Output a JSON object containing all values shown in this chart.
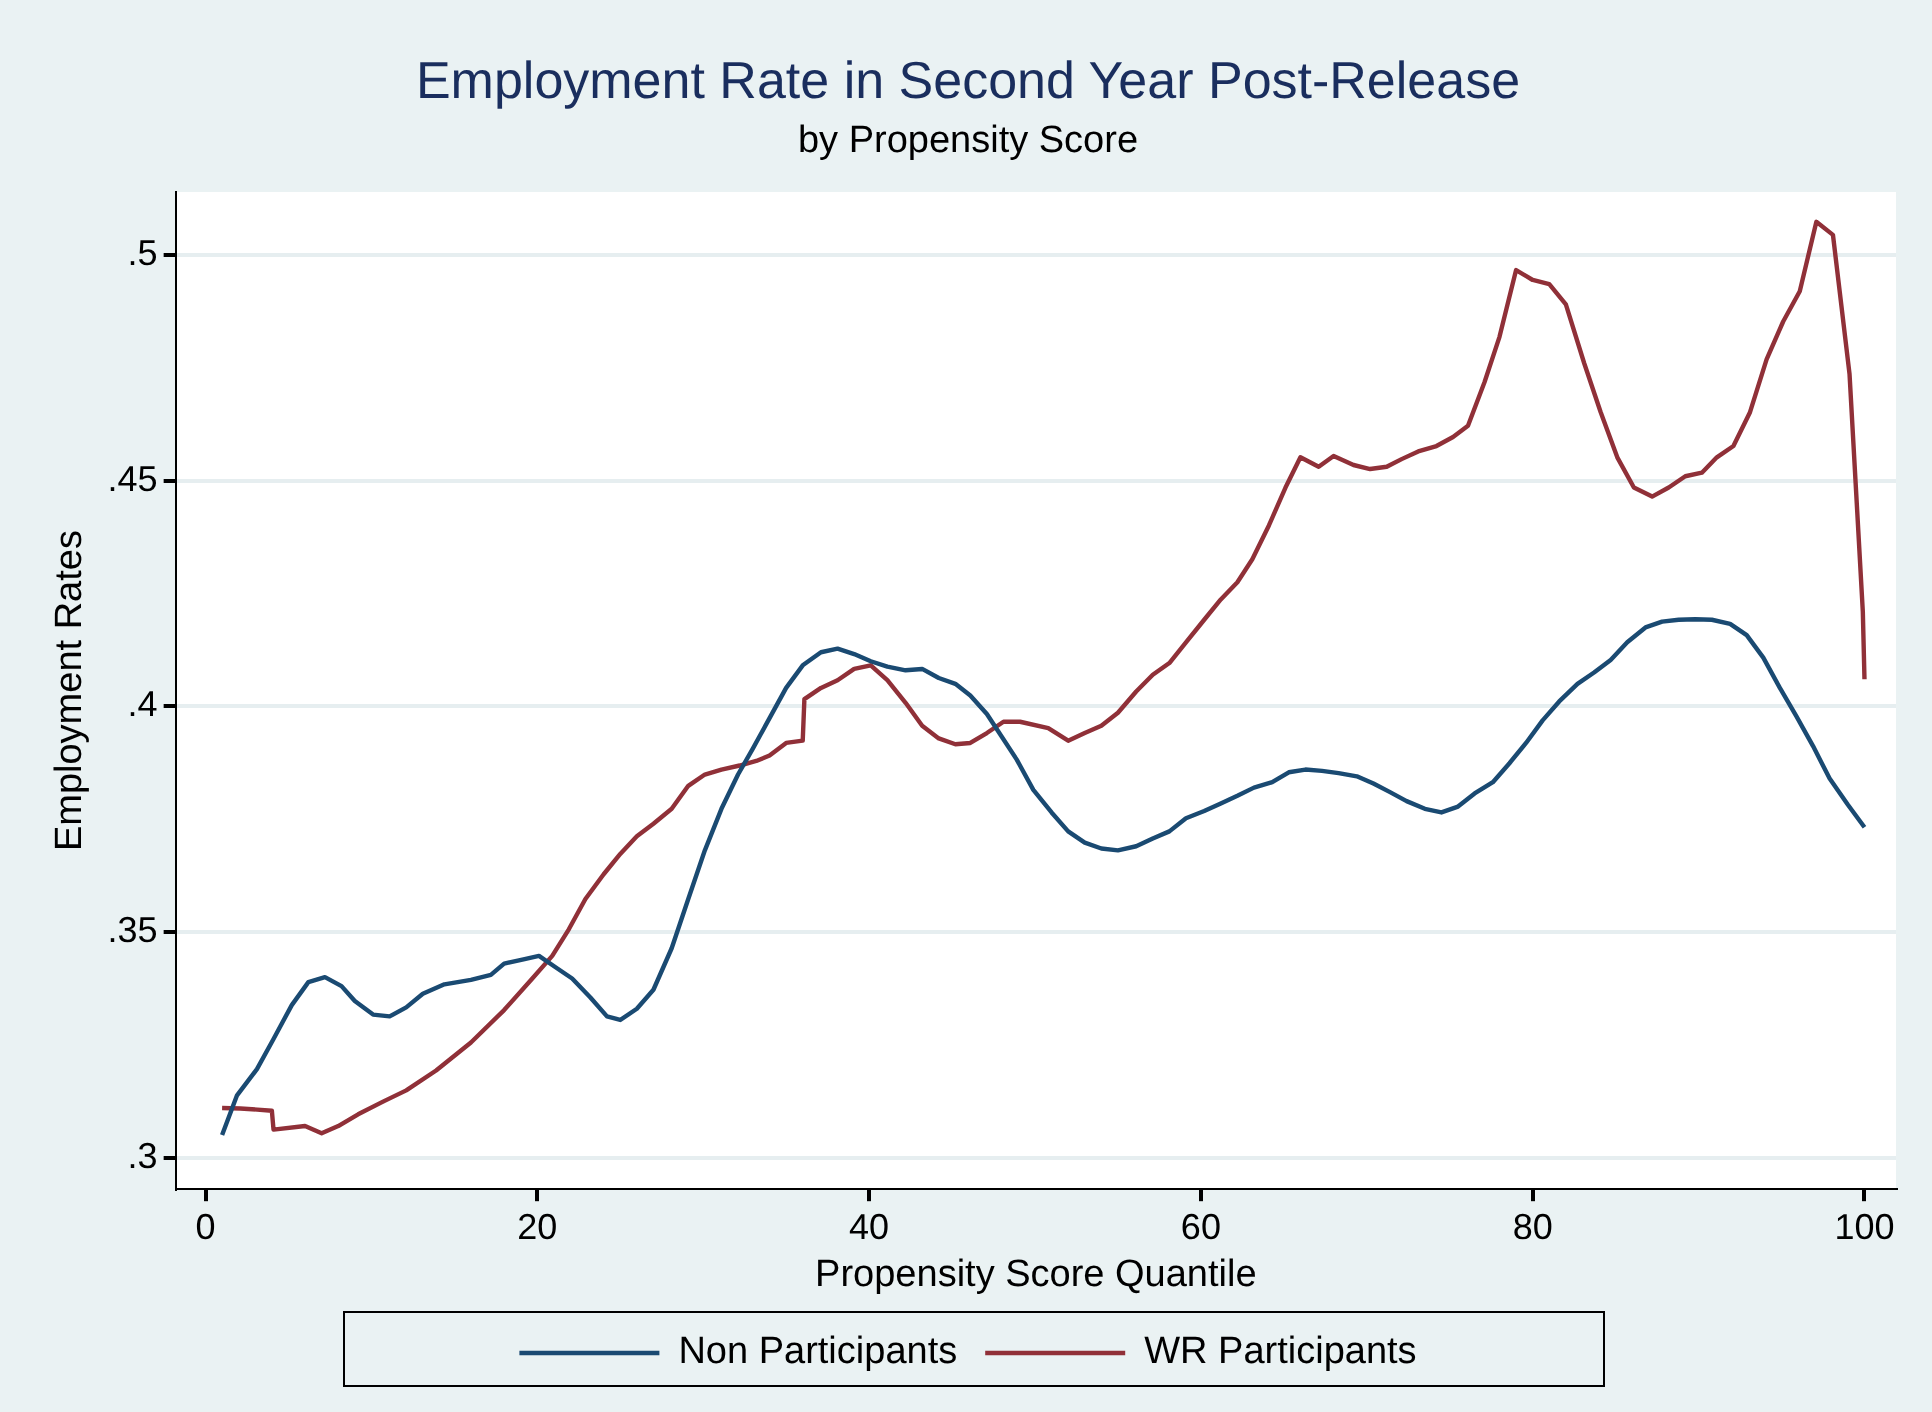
{
  "chart_data": {
    "type": "line",
    "title": "Employment Rate in Second Year Post-Release",
    "subtitle": "by Propensity Score",
    "xlabel": "Propensity Score Quantile",
    "ylabel": "Employment Rates",
    "xlim": [
      -1.8,
      101.9
    ],
    "xticks": [
      0,
      20,
      40,
      60,
      80,
      100
    ],
    "ylim": [
      0.293,
      0.514
    ],
    "yticks": [
      {
        "value": 0.3,
        "label": ".3"
      },
      {
        "value": 0.35,
        "label": ".35"
      },
      {
        "value": 0.4,
        "label": ".4"
      },
      {
        "value": 0.45,
        "label": ".45"
      },
      {
        "value": 0.5,
        "label": ".5"
      }
    ],
    "grid": "y",
    "legend": "bottom",
    "marker": "none",
    "line_style": "solid",
    "series": [
      {
        "name": "Non Participants",
        "color": "#1a4a72",
        "x": [
          1,
          1.9,
          3.1,
          4.1,
          5.2,
          6.2,
          7.2,
          8.2,
          9,
          10.1,
          11.1,
          12.1,
          13.1,
          14.4,
          16,
          17.2,
          18,
          19.1,
          20.1,
          21.1,
          22.1,
          23.2,
          24.2,
          25,
          26,
          27,
          28.1,
          29.1,
          30.1,
          31.1,
          32.1,
          33,
          34,
          35,
          36,
          37.1,
          38.1,
          39.1,
          40.1,
          41.1,
          42.2,
          43.2,
          44.2,
          45.2,
          46.1,
          47.1,
          48.9,
          49.9,
          51,
          52,
          53,
          54,
          55,
          56.1,
          57.1,
          58.1,
          59.1,
          60.2,
          61.2,
          62.2,
          63.2,
          64.3,
          65.3,
          66.3,
          67.3,
          68.3,
          69.4,
          70.4,
          71.4,
          72.4,
          73.5,
          74.5,
          75.5,
          76.5,
          77.6,
          78.6,
          79.6,
          80.6,
          81.6,
          82.7,
          83.7,
          84.7,
          85.7,
          86.8,
          87.8,
          88.8,
          89.8,
          90.8,
          91.9,
          92.9,
          93.9,
          94.9,
          95.9,
          96.9,
          97.9,
          99,
          100
        ],
        "values": [
          0.305,
          0.3138,
          0.3196,
          0.3263,
          0.3338,
          0.3389,
          0.34,
          0.338,
          0.3347,
          0.3317,
          0.3313,
          0.3333,
          0.3363,
          0.3384,
          0.3394,
          0.3405,
          0.343,
          0.3439,
          0.3447,
          0.3422,
          0.3397,
          0.3355,
          0.3313,
          0.3305,
          0.333,
          0.3372,
          0.3464,
          0.3573,
          0.3681,
          0.3773,
          0.3849,
          0.3907,
          0.3974,
          0.4041,
          0.4091,
          0.412,
          0.4128,
          0.4116,
          0.41,
          0.4088,
          0.408,
          0.4083,
          0.4063,
          0.405,
          0.4024,
          0.3983,
          0.3882,
          0.3815,
          0.3765,
          0.3723,
          0.3698,
          0.3685,
          0.3681,
          0.369,
          0.3707,
          0.3723,
          0.3752,
          0.3768,
          0.3785,
          0.3802,
          0.382,
          0.3832,
          0.3854,
          0.386,
          0.3857,
          0.3852,
          0.3845,
          0.3829,
          0.381,
          0.379,
          0.3773,
          0.3765,
          0.3778,
          0.3807,
          0.3832,
          0.3874,
          0.3919,
          0.3969,
          0.4011,
          0.405,
          0.4075,
          0.4103,
          0.4142,
          0.4175,
          0.4188,
          0.4192,
          0.4193,
          0.4192,
          0.4183,
          0.4158,
          0.4108,
          0.4041,
          0.3978,
          0.3912,
          0.384,
          0.3782,
          0.3732
        ]
      },
      {
        "name": "WR Participants",
        "color": "#903038",
        "x": [
          1,
          2.1,
          4,
          4.1,
          6,
          7,
          8,
          9.2,
          10.7,
          12.1,
          13.9,
          16,
          18,
          19.7,
          20.9,
          21.9,
          22.9,
          24,
          25,
          26,
          27,
          28.1,
          29.1,
          30.1,
          31.1,
          32.2,
          33.2,
          34,
          35,
          36,
          36.1,
          37.1,
          38.1,
          39.1,
          40.1,
          41.1,
          42.2,
          43.2,
          44.2,
          45.2,
          46.1,
          47.1,
          48.1,
          49.1,
          50.8,
          52,
          53,
          54,
          55,
          56.1,
          57.1,
          58.1,
          59.1,
          60.2,
          61.2,
          62.2,
          63.1,
          64.1,
          65.1,
          66,
          67.1,
          68,
          69.2,
          70.2,
          71.2,
          72.1,
          73.1,
          74.2,
          75.2,
          76.1,
          77.1,
          78,
          79,
          80,
          81,
          82,
          83.1,
          84.1,
          85.1,
          86.1,
          87.2,
          88.2,
          89.2,
          90.2,
          91.1,
          92.1,
          93.1,
          94.1,
          95.1,
          96.1,
          97.1,
          98.1,
          99.1,
          99.9,
          100
        ],
        "values": [
          0.311,
          0.3109,
          0.3104,
          0.3062,
          0.307,
          0.3054,
          0.307,
          0.3096,
          0.3124,
          0.3149,
          0.3193,
          0.3255,
          0.3327,
          0.3397,
          0.3447,
          0.3506,
          0.3573,
          0.3628,
          0.3673,
          0.3712,
          0.374,
          0.3773,
          0.3824,
          0.3849,
          0.386,
          0.3869,
          0.3879,
          0.3891,
          0.3919,
          0.3924,
          0.4016,
          0.4041,
          0.4058,
          0.4083,
          0.4091,
          0.4058,
          0.4008,
          0.3957,
          0.3929,
          0.3916,
          0.3919,
          0.3941,
          0.3966,
          0.3966,
          0.3952,
          0.3924,
          0.3941,
          0.3957,
          0.3986,
          0.4033,
          0.407,
          0.4096,
          0.4142,
          0.4192,
          0.4237,
          0.4275,
          0.4326,
          0.4401,
          0.4485,
          0.4552,
          0.4531,
          0.4555,
          0.4535,
          0.4526,
          0.4531,
          0.4548,
          0.4565,
          0.4577,
          0.4597,
          0.4622,
          0.4719,
          0.4819,
          0.4967,
          0.4945,
          0.4936,
          0.4891,
          0.4761,
          0.4652,
          0.4552,
          0.4485,
          0.4465,
          0.4485,
          0.451,
          0.4518,
          0.4552,
          0.4577,
          0.4652,
          0.4769,
          0.4853,
          0.492,
          0.5074,
          0.5045,
          0.4736,
          0.421,
          0.406
        ]
      }
    ]
  }
}
